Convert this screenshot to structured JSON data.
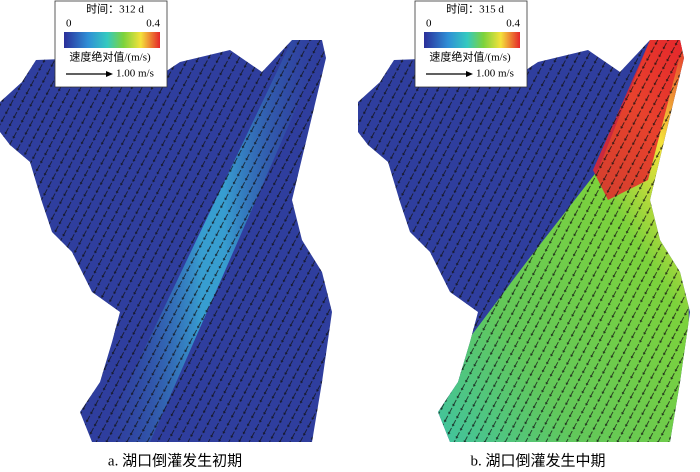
{
  "panels": [
    {
      "time": "时间：312 d",
      "colorbar_min": "0",
      "colorbar_max": "0.4",
      "legend_label": "速度绝对值/(m/s)",
      "reference": "1.00 m/s",
      "caption": "a. 湖口倒灌发生初期"
    },
    {
      "time": "时间：315 d",
      "colorbar_min": "0",
      "colorbar_max": "0.4",
      "legend_label": "速度绝对值/(m/s)",
      "reference": "1.00 m/s",
      "caption": "b. 湖口倒灌发生中期"
    }
  ]
}
